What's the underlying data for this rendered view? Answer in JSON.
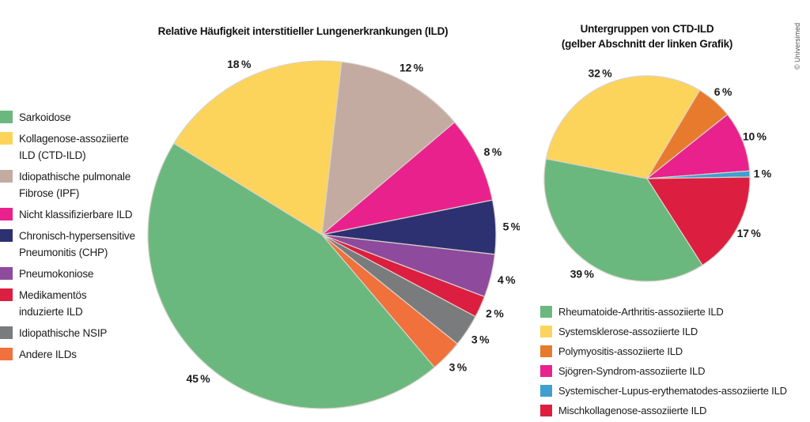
{
  "credit": "© Universimed",
  "chart_data": [
    {
      "type": "pie",
      "title": "Relative Häufigkeit interstitieller Lungenerkrankungen (ILD)",
      "subtitle": "",
      "direction": "clockwise",
      "start_angle_deg": 139.7,
      "total": 100,
      "legend_position": "left",
      "label_format": "{value} %",
      "slices": [
        {
          "label": "Sarkoidose",
          "value": 45,
          "pct_label": "45 %",
          "color": "#6bb87f"
        },
        {
          "label": "Kollagenose-assoziierte\nILD (CTD-ILD)",
          "value": 18,
          "pct_label": "18 %",
          "color": "#fcd45b"
        },
        {
          "label": "Idiopathische pulmonale\nFibrose (IPF)",
          "value": 12,
          "pct_label": "12 %",
          "color": "#c3aba1"
        },
        {
          "label": "Nicht klassifizierbare ILD",
          "value": 8,
          "pct_label": "8 %",
          "color": "#e9218c"
        },
        {
          "label": "Chronisch-hypersensitive\nPneumonitis (CHP)",
          "value": 5,
          "pct_label": "5 %",
          "color": "#2d3172"
        },
        {
          "label": "Pneumokoniose",
          "value": 4,
          "pct_label": "4 %",
          "color": "#8e4a9c"
        },
        {
          "label": "Medikamentös\ninduzierte ILD",
          "value": 2,
          "pct_label": "2 %",
          "color": "#dc1e41"
        },
        {
          "label": "Idiopathische NSIP",
          "value": 3,
          "pct_label": "3 %",
          "color": "#7a7b7d"
        },
        {
          "label": "Andere ILDs",
          "value": 3,
          "pct_label": "3 %",
          "color": "#f0713c"
        }
      ]
    },
    {
      "type": "pie",
      "title": "Untergruppen von CTD-ILD",
      "subtitle": "(gelber Abschnitt der linken Grafik)",
      "direction": "clockwise",
      "start_angle_deg": 147.4,
      "total": 105,
      "legend_position": "bottom",
      "label_format": "{value} %",
      "slices": [
        {
          "label": "Rheumatoide-Arthritis-assoziierte ILD",
          "value": 39,
          "pct_label": "39 %",
          "color": "#6bb87f"
        },
        {
          "label": "Systemsklerose-assoziierte ILD",
          "value": 32,
          "pct_label": "32 %",
          "color": "#fcd45b"
        },
        {
          "label": "Polymyositis-assoziierte ILD",
          "value": 6,
          "pct_label": "6 %",
          "color": "#e87a2e"
        },
        {
          "label": "Sjögren-Syndrom-assoziierte ILD",
          "value": 10,
          "pct_label": "10 %",
          "color": "#e9218c"
        },
        {
          "label": "Systemischer-Lupus-erythematodes-assoziierte ILD",
          "value": 1,
          "pct_label": "1 %",
          "color": "#3e9fd0"
        },
        {
          "label": "Mischkollagenose-assoziierte ILD",
          "value": 17,
          "pct_label": "17 %",
          "color": "#dc1e41"
        }
      ]
    }
  ]
}
